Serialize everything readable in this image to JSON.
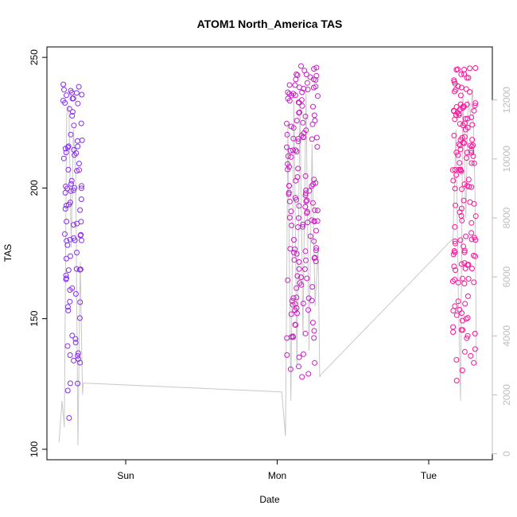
{
  "chart_data": {
    "type": "scatter",
    "title": "ATOM1 North_America TAS",
    "xlabel": "Date",
    "ylabel": "TAS",
    "x_ticks": [
      "Sun",
      "Mon",
      "Tue"
    ],
    "x_tick_positions": [
      0.5,
      1.5,
      2.5
    ],
    "xlim": [
      -0.02,
      2.92
    ],
    "ylim": [
      96,
      254
    ],
    "y_ticks": [
      100,
      150,
      200,
      250
    ],
    "y2lim": [
      -200,
      13800
    ],
    "y2_ticks": [
      0,
      2000,
      4000,
      6000,
      8000,
      10000,
      12000
    ],
    "grid": false,
    "legend": "none",
    "colors": {
      "start": "#7b2fff",
      "end": "#ff1493",
      "line": "#c8c8c8",
      "axis": "#000000",
      "right_axis": "#bdbdbd"
    },
    "clusters": [
      {
        "x_start": 0.08,
        "x_end": 0.22,
        "tas_min": 101,
        "tas_max": 240,
        "points": 95,
        "color_from": 0.0,
        "color_to": 0.2
      },
      {
        "x_start": 1.55,
        "x_end": 1.78,
        "tas_min": 110,
        "tas_max": 247,
        "points": 165,
        "color_from": 0.5,
        "color_to": 0.65
      },
      {
        "x_start": 2.65,
        "x_end": 2.82,
        "tas_min": 118,
        "tas_max": 246,
        "points": 150,
        "color_from": 0.9,
        "color_to": 1.0
      }
    ],
    "line_series": [
      {
        "x": 0.06,
        "y": 400
      },
      {
        "x": 0.08,
        "y": 1800
      },
      {
        "x": 0.095,
        "y": 900
      },
      {
        "x": 0.11,
        "y": 11500
      },
      {
        "x": 0.125,
        "y": 11800
      },
      {
        "x": 0.14,
        "y": 7000
      },
      {
        "x": 0.155,
        "y": 11000
      },
      {
        "x": 0.17,
        "y": 9500
      },
      {
        "x": 0.185,
        "y": 300
      },
      {
        "x": 0.2,
        "y": 6500
      },
      {
        "x": 0.215,
        "y": 2000
      },
      {
        "x": 0.22,
        "y": 2400
      },
      {
        "x": 1.53,
        "y": 2100
      },
      {
        "x": 1.555,
        "y": 600
      },
      {
        "x": 1.57,
        "y": 11200
      },
      {
        "x": 1.59,
        "y": 1800
      },
      {
        "x": 1.61,
        "y": 12000
      },
      {
        "x": 1.63,
        "y": 3000
      },
      {
        "x": 1.65,
        "y": 11800
      },
      {
        "x": 1.67,
        "y": 4000
      },
      {
        "x": 1.69,
        "y": 12300
      },
      {
        "x": 1.71,
        "y": 3500
      },
      {
        "x": 1.73,
        "y": 10500
      },
      {
        "x": 1.75,
        "y": 5000
      },
      {
        "x": 1.77,
        "y": 7000
      },
      {
        "x": 1.78,
        "y": 2600
      },
      {
        "x": 1.79,
        "y": 2700
      },
      {
        "x": 2.66,
        "y": 7300
      },
      {
        "x": 2.68,
        "y": 11000
      },
      {
        "x": 2.695,
        "y": 5600
      },
      {
        "x": 2.71,
        "y": 1800
      },
      {
        "x": 2.725,
        "y": 12300
      },
      {
        "x": 2.745,
        "y": 8000
      },
      {
        "x": 2.76,
        "y": 12000
      },
      {
        "x": 2.775,
        "y": 11500
      },
      {
        "x": 2.79,
        "y": 12400
      },
      {
        "x": 2.805,
        "y": 9000
      },
      {
        "x": 2.815,
        "y": 3000
      },
      {
        "x": 2.82,
        "y": 3000
      }
    ]
  }
}
